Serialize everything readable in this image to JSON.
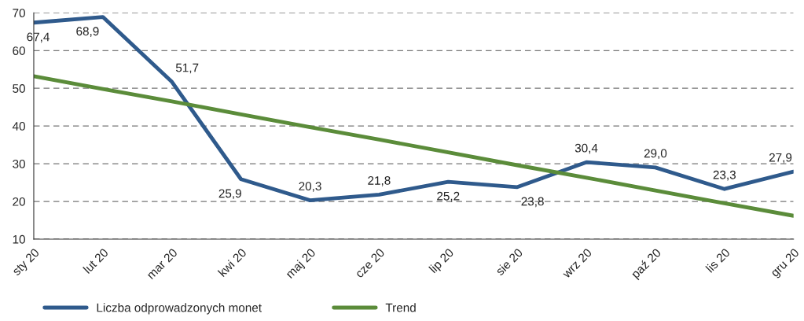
{
  "chart_data": {
    "type": "line",
    "categories": [
      "sty 20",
      "lut 20",
      "mar 20",
      "kwi 20",
      "maj 20",
      "cze 20",
      "lip 20",
      "sie 20",
      "wrz 20",
      "paź 20",
      "lis 20",
      "gru 20"
    ],
    "series": [
      {
        "name": "Liczba odprowadzonych monet",
        "color": "#2f5a8c",
        "values": [
          67.4,
          68.9,
          51.7,
          25.9,
          20.3,
          21.8,
          25.2,
          23.8,
          30.4,
          29.0,
          23.3,
          27.9
        ],
        "value_labels": [
          "67,4",
          "68,9",
          "51,7",
          "25,9",
          "20,3",
          "21,8",
          "25,2",
          "23,8",
          "30,4",
          "29,0",
          "23,3",
          "27,9"
        ]
      },
      {
        "name": "Trend",
        "color": "#5b8c3a",
        "values": [
          53.2,
          49.8,
          46.5,
          43.1,
          39.7,
          36.4,
          33.0,
          29.6,
          26.3,
          22.9,
          19.5,
          16.2
        ]
      }
    ],
    "ylim": [
      10,
      70
    ],
    "yticks": [
      10,
      20,
      30,
      40,
      50,
      60,
      70
    ],
    "grid": "y",
    "legend": "bottom",
    "line_style": "solid",
    "marker": "none"
  }
}
